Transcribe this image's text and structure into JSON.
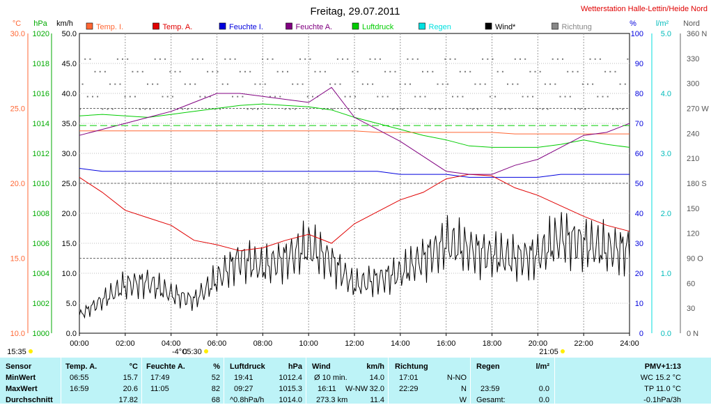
{
  "header": {
    "title": "Freitag, 29.07.2011",
    "station": "Wetterstation Halle-Lettin/Heide Nord"
  },
  "legend": [
    {
      "label": "Temp. I.",
      "color": "#ff6633"
    },
    {
      "label": "Temp. A.",
      "color": "#e00000"
    },
    {
      "label": "Feuchte I.",
      "color": "#0000dd"
    },
    {
      "label": "Feuchte A.",
      "color": "#800080"
    },
    {
      "label": "Luftdruck",
      "color": "#00cc00"
    },
    {
      "label": "Regen",
      "color": "#00e0e0"
    },
    {
      "label": "Wind*",
      "color": "#000000"
    },
    {
      "label": "Richtung",
      "color": "#888888"
    }
  ],
  "axes": {
    "temp_unit": "°C",
    "pressure_unit": "hPa",
    "wind_unit": "km/h",
    "humidity_unit": "%",
    "rain_unit": "l/m²",
    "dir_unit": "Nord",
    "temp_ticks": [
      "30.0",
      "25.0",
      "20.0",
      "15.0",
      "10.0"
    ],
    "pressure_ticks": [
      "1020",
      "1018",
      "1016",
      "1014",
      "1012",
      "1010",
      "1008",
      "1006",
      "1004",
      "1002",
      "1000"
    ],
    "wind_ticks": [
      "50.0",
      "45.0",
      "40.0",
      "35.0",
      "30.0",
      "25.0",
      "20.0",
      "15.0",
      "10.0",
      "5.0",
      "0.0"
    ],
    "humidity_ticks": [
      "100",
      "90",
      "80",
      "70",
      "60",
      "50",
      "40",
      "30",
      "20",
      "10",
      "0"
    ],
    "rain_ticks": [
      "5.0",
      "4.0",
      "3.0",
      "2.0",
      "1.0",
      "0.0"
    ],
    "dir_ticks": [
      "360 N",
      "330",
      "300",
      "270 W",
      "240",
      "210",
      "180 S",
      "150",
      "120",
      "90 O",
      "60",
      "30",
      "0 N"
    ],
    "x_ticks": [
      "00:00",
      "02:00",
      "04:00",
      "06:00",
      "08:00",
      "10:00",
      "12:00",
      "14:00",
      "16:00",
      "18:00",
      "20:00",
      "22:00",
      "24:00"
    ]
  },
  "markers": {
    "sunrise": "05:30",
    "sunset": "21:05",
    "moon": "15:35",
    "temp_marker": "-4°C"
  },
  "chart_data": {
    "type": "line",
    "x_label": "",
    "x_range": [
      "00:00",
      "24:00"
    ],
    "grid": true,
    "legend_placement": "top",
    "x": [
      0,
      1,
      2,
      3,
      4,
      5,
      6,
      7,
      8,
      9,
      10,
      11,
      12,
      13,
      14,
      15,
      16,
      17,
      18,
      19,
      20,
      21,
      22,
      23,
      24
    ],
    "series": [
      {
        "name": "Temp. I.",
        "axis": "°C",
        "color": "#ff6633",
        "ylim": [
          10,
          30
        ],
        "values": [
          23.5,
          23.5,
          23.5,
          23.5,
          23.5,
          23.5,
          23.5,
          23.5,
          23.5,
          23.5,
          23.5,
          23.5,
          23.5,
          23.4,
          23.4,
          23.4,
          23.4,
          23.4,
          23.4,
          23.3,
          23.3,
          23.3,
          23.3,
          23.3,
          23.3
        ]
      },
      {
        "name": "Temp. A.",
        "axis": "°C",
        "color": "#e00000",
        "ylim": [
          10,
          30
        ],
        "values": [
          20.4,
          19.4,
          18.2,
          17.7,
          17.2,
          16.2,
          15.9,
          15.5,
          15.7,
          16.2,
          16.6,
          16.0,
          17.3,
          18.1,
          18.9,
          19.4,
          20.3,
          20.6,
          20.5,
          19.7,
          19.2,
          18.5,
          17.8,
          17.2,
          16.8
        ]
      },
      {
        "name": "Feuchte I.",
        "axis": "%",
        "color": "#0000dd",
        "ylim": [
          0,
          100
        ],
        "values": [
          55,
          54,
          54,
          54,
          54,
          54,
          54,
          54,
          54,
          54,
          54,
          54,
          54,
          54,
          53,
          53,
          53,
          52,
          52,
          52,
          52,
          53,
          53,
          53,
          53
        ]
      },
      {
        "name": "Feuchte A.",
        "axis": "%",
        "color": "#800080",
        "ylim": [
          0,
          100
        ],
        "values": [
          66,
          68,
          70,
          72,
          74,
          77,
          80,
          80,
          79,
          78,
          77,
          82,
          72,
          68,
          64,
          59,
          54,
          53,
          53,
          56,
          58,
          62,
          66,
          67,
          70
        ]
      },
      {
        "name": "Luftdruck",
        "axis": "hPa",
        "color": "#00cc00",
        "ylim": [
          1000,
          1020
        ],
        "values": [
          1014.5,
          1014.6,
          1014.5,
          1014.4,
          1014.6,
          1014.8,
          1015.0,
          1015.2,
          1015.3,
          1015.2,
          1015.1,
          1014.9,
          1014.4,
          1014.0,
          1013.6,
          1013.2,
          1012.9,
          1012.5,
          1012.4,
          1012.4,
          1012.4,
          1012.6,
          1012.9,
          1012.6,
          1012.4
        ]
      },
      {
        "name": "Wind*",
        "axis": "km/h",
        "color": "#000000",
        "ylim": [
          0,
          50
        ],
        "values": [
          3.0,
          5.5,
          8.0,
          8.5,
          6.5,
          5.5,
          9.0,
          12.5,
          11.0,
          12.5,
          14.5,
          12.0,
          8.0,
          9.0,
          10.0,
          12.5,
          15.0,
          14.0,
          13.0,
          12.5,
          13.0,
          16.0,
          15.0,
          14.0,
          14.0
        ]
      }
    ],
    "ylim_temp": [
      10,
      30
    ],
    "ylim_pressure": [
      1000,
      1020
    ],
    "ylim_wind": [
      0,
      50
    ],
    "ylim_humidity": [
      0,
      100
    ],
    "ylim_rain": [
      0,
      5
    ],
    "ylim_direction": [
      0,
      360
    ]
  },
  "stats": {
    "row_labels": [
      "Sensor",
      "MinWert",
      "MaxWert",
      "Durchschnitt"
    ],
    "temp": {
      "title": "Temp. A.",
      "unit": "°C",
      "min_time": "06:55",
      "min": "15.7",
      "max_time": "16:59",
      "max": "20.6",
      "avg": "17.82"
    },
    "hum": {
      "title": "Feuchte A.",
      "unit": "%",
      "min_time": "17:49",
      "min": "52",
      "max_time": "11:05",
      "max": "82",
      "avg": "68"
    },
    "press": {
      "title": "Luftdruck",
      "unit": "hPa",
      "min_time": "19:41",
      "min": "1012.4",
      "max_time": "09:27",
      "max": "1015.3",
      "avg_label": "^0.8hPa/h",
      "avg": "1014.0"
    },
    "wind": {
      "title": "Wind",
      "unit": "km/h",
      "min_label": "Ø 10 min.",
      "min": "14.0",
      "max_time": "16:11",
      "max_dir": "W-NW",
      "max": "32.0",
      "avg_label": "273.3 km",
      "avg": "11.4"
    },
    "dir": {
      "title": "Richtung",
      "min_time": "17:01",
      "min": "N-NO",
      "max_time": "22:29",
      "max": "N",
      "avg": "W"
    },
    "rain": {
      "title": "Regen",
      "unit": "l/m²",
      "max_time": "23:59",
      "max": "0.0",
      "avg_label": "Gesamt:",
      "avg": "0.0"
    },
    "pmv": {
      "title": "PMV+1:13",
      "wc": "WC 15.2 °C",
      "tp": "TP 11.0 °C",
      "trend": "-0.1hPa/3h"
    }
  }
}
